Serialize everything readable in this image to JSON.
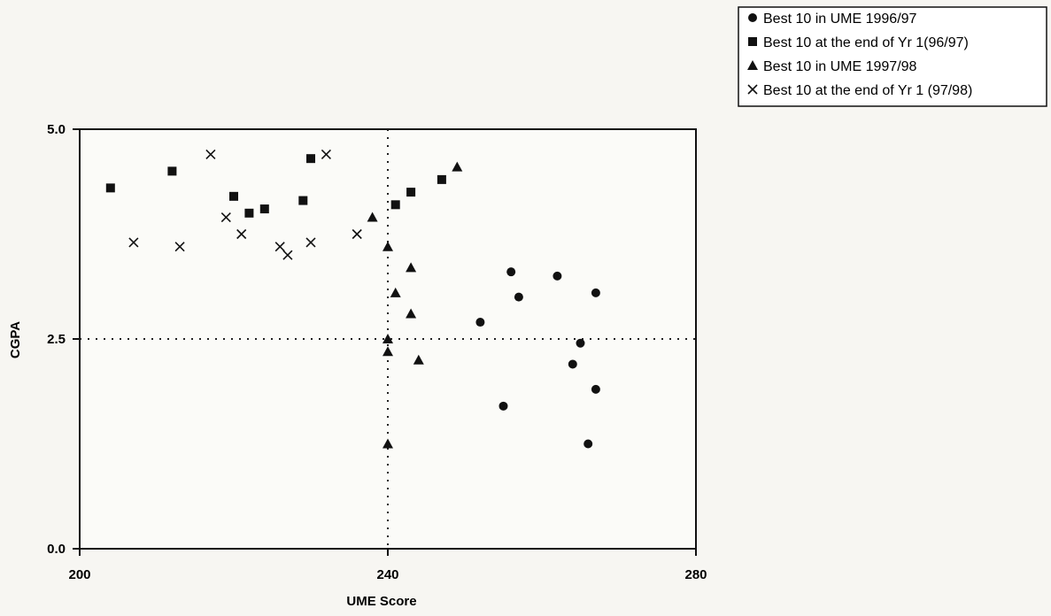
{
  "chart_data": {
    "type": "scatter",
    "title": "",
    "xlabel": "UME Score",
    "ylabel": "CGPA",
    "xlim": [
      200,
      280
    ],
    "ylim": [
      0,
      5
    ],
    "x_ticks": [
      {
        "value": 200,
        "label": "200"
      },
      {
        "value": 240,
        "label": "240"
      },
      {
        "value": 280,
        "label": "280"
      }
    ],
    "y_ticks": [
      {
        "value": 0,
        "label": "0.0"
      },
      {
        "value": 2.5,
        "label": "2.5"
      },
      {
        "value": 5,
        "label": "5.0"
      }
    ],
    "reference_lines": {
      "x": 240,
      "y": 2.5,
      "style": "dotted"
    },
    "legend_position": "top-right",
    "series": [
      {
        "name": "Best 10 in UME 1996/97",
        "marker": "circle",
        "points": [
          {
            "x": 256,
            "y": 3.3
          },
          {
            "x": 257,
            "y": 3.0
          },
          {
            "x": 262,
            "y": 3.25
          },
          {
            "x": 267,
            "y": 3.05
          },
          {
            "x": 252,
            "y": 2.7
          },
          {
            "x": 265,
            "y": 2.45
          },
          {
            "x": 264,
            "y": 2.2
          },
          {
            "x": 267,
            "y": 1.9
          },
          {
            "x": 255,
            "y": 1.7
          },
          {
            "x": 266,
            "y": 1.25
          }
        ]
      },
      {
        "name": "Best 10 at the end of Yr 1(96/97)",
        "marker": "square",
        "points": [
          {
            "x": 204,
            "y": 4.3
          },
          {
            "x": 220,
            "y": 4.2
          },
          {
            "x": 222,
            "y": 4.0
          },
          {
            "x": 224,
            "y": 4.05
          },
          {
            "x": 229,
            "y": 4.15
          },
          {
            "x": 230,
            "y": 4.65
          },
          {
            "x": 241,
            "y": 4.1
          },
          {
            "x": 243,
            "y": 4.25
          },
          {
            "x": 247,
            "y": 4.4
          },
          {
            "x": 212,
            "y": 4.5
          }
        ]
      },
      {
        "name": "Best 10 in UME 1997/98",
        "marker": "triangle",
        "points": [
          {
            "x": 238,
            "y": 3.95
          },
          {
            "x": 240,
            "y": 3.6
          },
          {
            "x": 243,
            "y": 3.35
          },
          {
            "x": 241,
            "y": 3.05
          },
          {
            "x": 243,
            "y": 2.8
          },
          {
            "x": 240,
            "y": 2.5
          },
          {
            "x": 240,
            "y": 2.35
          },
          {
            "x": 244,
            "y": 2.25
          },
          {
            "x": 240,
            "y": 1.25
          },
          {
            "x": 249,
            "y": 4.55
          }
        ]
      },
      {
        "name": "Best 10 at the end of Yr 1 (97/98)",
        "marker": "x",
        "points": [
          {
            "x": 207,
            "y": 3.65
          },
          {
            "x": 213,
            "y": 3.6
          },
          {
            "x": 217,
            "y": 4.7
          },
          {
            "x": 219,
            "y": 3.95
          },
          {
            "x": 221,
            "y": 3.75
          },
          {
            "x": 226,
            "y": 3.6
          },
          {
            "x": 227,
            "y": 3.5
          },
          {
            "x": 230,
            "y": 3.65
          },
          {
            "x": 232,
            "y": 4.7
          },
          {
            "x": 236,
            "y": 3.75
          }
        ]
      }
    ]
  }
}
